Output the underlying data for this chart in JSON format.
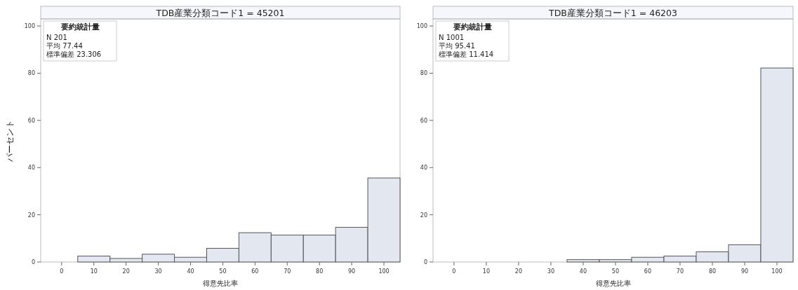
{
  "chart_data": [
    {
      "type": "histogram",
      "title": "TDB産業分類コード1 = 45201",
      "xlabel": "得意先比率",
      "ylabel": "パーセント",
      "annotations": [
        "要約統計量",
        "N 201",
        "平均 77.44",
        "標準偏差 23.306"
      ],
      "bins": [
        -5,
        5,
        15,
        25,
        35,
        45,
        55,
        65,
        75,
        85,
        95,
        105
      ],
      "values": [
        0,
        2.5,
        1.5,
        3.3,
        2.0,
        5.8,
        12.4,
        11.4,
        11.4,
        14.7,
        35.6
      ],
      "color": "#e3e7f0",
      "xlim": [
        -6.5,
        105
      ],
      "ylim": [
        0,
        103
      ],
      "xticks": [
        0,
        10,
        20,
        30,
        40,
        50,
        60,
        70,
        80,
        90,
        100
      ],
      "yticks": [
        0,
        20,
        40,
        60,
        80,
        100
      ]
    },
    {
      "type": "histogram",
      "title": "TDB産業分類コード1 = 46203",
      "xlabel": "得意先比率",
      "annotations": [
        "要約統計量",
        "N 1001",
        "平均 95.41",
        "標準偏差 11.414"
      ],
      "bins": [
        -5,
        5,
        15,
        25,
        35,
        45,
        55,
        65,
        75,
        85,
        95,
        105
      ],
      "values": [
        0,
        0,
        0,
        0,
        1.0,
        1.0,
        2.0,
        2.5,
        4.3,
        7.3,
        82.2
      ],
      "color": "#e3e7f0",
      "xlim": [
        -6.5,
        105
      ],
      "ylim": [
        0,
        103
      ],
      "xticks": [
        0,
        10,
        20,
        30,
        40,
        50,
        60,
        70,
        80,
        90,
        100
      ],
      "yticks": [
        0,
        20,
        40,
        60,
        80,
        100
      ]
    }
  ]
}
